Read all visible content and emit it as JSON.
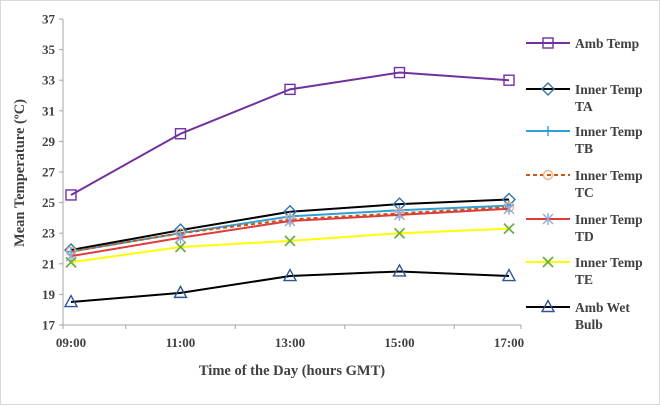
{
  "chart_data": {
    "type": "line",
    "xlabel": "Time of the Day (hours GMT)",
    "ylabel": "Mean Temperature (ºC)",
    "ylim": [
      17,
      37
    ],
    "yticks": [
      "17",
      "19",
      "21",
      "23",
      "25",
      "27",
      "29",
      "31",
      "33",
      "35",
      "37"
    ],
    "categories": [
      "09:00",
      "11:00",
      "13:00",
      "15:00",
      "17:00"
    ],
    "grid": false,
    "legend_position": "right",
    "series": [
      {
        "name": "Amb Temp",
        "name_lines": [
          "Amb Temp"
        ],
        "color": "#7030a0",
        "dash": "",
        "marker": "square",
        "values": [
          25.5,
          29.5,
          32.4,
          33.5,
          33.0
        ]
      },
      {
        "name": "Inner Temp TA",
        "name_lines": [
          "Inner Temp",
          "TA"
        ],
        "color": "#000000",
        "marker_color": "#2e75b6",
        "dash": "",
        "marker": "diamond",
        "values": [
          21.9,
          23.2,
          24.4,
          24.9,
          25.2
        ]
      },
      {
        "name": "Inner Temp TB",
        "name_lines": [
          "Inner Temp",
          "TB"
        ],
        "color": "#2e9fd8",
        "dash": "",
        "marker": "plus",
        "values": [
          21.8,
          23.0,
          24.1,
          24.5,
          24.8
        ]
      },
      {
        "name": "Inner Temp TC",
        "name_lines": [
          "Inner Temp",
          "TC"
        ],
        "color": "#c55a11",
        "marker_color": "#f4b183",
        "dash": "4,3",
        "marker": "circle",
        "values": [
          21.8,
          23.0,
          23.9,
          24.3,
          24.7
        ]
      },
      {
        "name": "Inner Temp TD",
        "name_lines": [
          "Inner Temp",
          "TD"
        ],
        "color": "#e03b3b",
        "marker_color": "#8faadc",
        "dash": "",
        "marker": "asterisk",
        "values": [
          21.5,
          22.7,
          23.8,
          24.2,
          24.6
        ]
      },
      {
        "name": "Inner Temp TE",
        "name_lines": [
          "Inner Temp",
          "TE"
        ],
        "color": "#ffff00",
        "marker_color": "#70ad47",
        "dash": "",
        "marker": "x",
        "values": [
          21.1,
          22.1,
          22.5,
          23.0,
          23.3
        ]
      },
      {
        "name": "Amb Wet Bulb",
        "name_lines": [
          "Amb Wet",
          "Bulb"
        ],
        "color": "#000000",
        "marker_color": "#2f5597",
        "dash": "",
        "marker": "triangle",
        "values": [
          18.5,
          19.1,
          20.2,
          20.5,
          20.2
        ]
      }
    ]
  }
}
